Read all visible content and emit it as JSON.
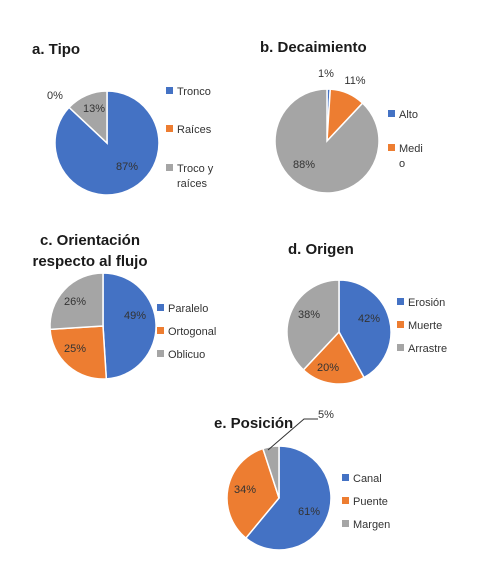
{
  "chart_data": [
    {
      "type": "pie",
      "title": "a. Tipo",
      "series": [
        {
          "name": "Tronco",
          "value": 87,
          "label": "87%",
          "color": "#4472C4"
        },
        {
          "name": "Raíces",
          "value": 0,
          "label": "0%",
          "color": "#ED7D31"
        },
        {
          "name": "Troco y raíces",
          "value": 13,
          "label": "13%",
          "color": "#A5A5A5"
        }
      ]
    },
    {
      "type": "pie",
      "title": "b. Decaimiento",
      "series": [
        {
          "name": "Alto",
          "value": 1,
          "label": "1%",
          "color": "#4472C4"
        },
        {
          "name": "Medio",
          "value": 11,
          "label": "11%",
          "color": "#ED7D31"
        },
        {
          "name": "",
          "value": 88,
          "label": "88%",
          "color": "#A5A5A5"
        }
      ]
    },
    {
      "type": "pie",
      "title": "c. Orientación respecto al flujo",
      "series": [
        {
          "name": "Paralelo",
          "value": 49,
          "label": "49%",
          "color": "#4472C4"
        },
        {
          "name": "Ortogonal",
          "value": 25,
          "label": "25%",
          "color": "#ED7D31"
        },
        {
          "name": "Oblicuo",
          "value": 26,
          "label": "26%",
          "color": "#A5A5A5"
        }
      ]
    },
    {
      "type": "pie",
      "title": "d. Origen",
      "series": [
        {
          "name": "Erosión",
          "value": 42,
          "label": "42%",
          "color": "#4472C4"
        },
        {
          "name": "Muerte",
          "value": 20,
          "label": "20%",
          "color": "#ED7D31"
        },
        {
          "name": "Arrastre",
          "value": 38,
          "label": "38%",
          "color": "#A5A5A5"
        }
      ]
    },
    {
      "type": "pie",
      "title": "e. Posición",
      "series": [
        {
          "name": "Canal",
          "value": 61,
          "label": "61%",
          "color": "#4472C4"
        },
        {
          "name": "Puente",
          "value": 34,
          "label": "34%",
          "color": "#ED7D31"
        },
        {
          "name": "Margen",
          "value": 5,
          "label": "5%",
          "color": "#A5A5A5"
        }
      ]
    }
  ]
}
